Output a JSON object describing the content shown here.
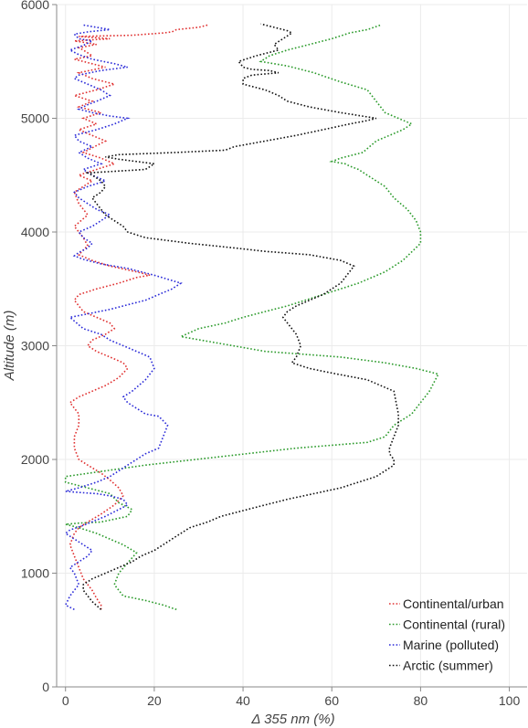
{
  "chart_data": {
    "type": "line",
    "xlabel": "Δ 355 nm (%)",
    "ylabel": "Altitude (m)",
    "xlim": [
      -2,
      104
    ],
    "ylim": [
      0,
      6000
    ],
    "xticks": [
      0,
      20,
      40,
      60,
      80,
      100
    ],
    "yticks": [
      0,
      1000,
      2000,
      3000,
      4000,
      5000,
      6000
    ],
    "grid": true,
    "legend_position": "bottom-right",
    "series": [
      {
        "name": "Continental/urban",
        "color": "#e03030",
        "x": [
          8,
          8,
          7,
          6,
          4,
          3,
          2,
          1,
          2,
          3,
          5,
          8,
          11,
          13,
          12,
          10,
          8,
          5,
          3,
          2,
          2,
          3,
          3,
          1,
          3,
          6,
          9,
          12,
          14,
          13,
          10,
          7,
          5,
          6,
          9,
          11,
          10,
          7,
          4,
          2,
          3,
          7,
          12,
          16,
          19,
          16,
          10,
          6,
          3,
          5,
          4,
          2,
          5,
          3,
          2,
          6,
          3,
          7,
          11,
          8,
          4,
          9,
          3,
          7,
          4,
          8,
          3,
          6,
          2,
          7,
          11,
          6,
          3,
          9,
          4,
          2,
          6,
          4,
          3,
          7,
          2,
          10,
          3,
          15,
          22,
          24,
          25,
          30,
          32
        ],
        "y": [
          680,
          720,
          780,
          850,
          950,
          1050,
          1150,
          1250,
          1350,
          1400,
          1450,
          1520,
          1600,
          1680,
          1750,
          1820,
          1880,
          1950,
          2000,
          2100,
          2200,
          2300,
          2400,
          2500,
          2550,
          2600,
          2650,
          2720,
          2800,
          2850,
          2900,
          2950,
          3000,
          3050,
          3100,
          3150,
          3200,
          3250,
          3300,
          3400,
          3450,
          3500,
          3550,
          3600,
          3620,
          3650,
          3700,
          3750,
          3800,
          3880,
          3950,
          4050,
          4150,
          4250,
          4350,
          4450,
          4500,
          4550,
          4600,
          4650,
          4700,
          4800,
          4900,
          4950,
          5000,
          5050,
          5100,
          5150,
          5200,
          5250,
          5300,
          5350,
          5400,
          5450,
          5500,
          5520,
          5550,
          5600,
          5620,
          5650,
          5680,
          5700,
          5720,
          5730,
          5750,
          5760,
          5780,
          5800,
          5820
        ]
      },
      {
        "name": "Continental (rural)",
        "color": "#2a9a2a",
        "x": [
          25,
          22,
          18,
          13,
          12,
          11,
          12,
          16,
          13,
          10,
          7,
          3,
          1,
          0,
          3,
          8,
          14,
          15,
          12,
          10,
          0,
          0,
          18,
          52,
          68,
          72,
          74,
          78,
          82,
          84,
          79,
          72,
          62,
          45,
          26,
          30,
          36,
          40,
          45,
          50,
          58,
          66,
          72,
          76,
          80,
          80,
          79,
          77,
          74,
          72,
          70,
          68,
          66,
          64,
          63,
          60,
          62,
          67,
          70,
          73,
          76,
          78,
          75,
          72,
          70,
          68,
          62,
          56,
          50,
          44,
          46,
          50,
          55,
          60,
          64,
          68,
          71
        ],
        "y": [
          680,
          720,
          760,
          800,
          850,
          900,
          1000,
          1180,
          1250,
          1300,
          1350,
          1400,
          1420,
          1430,
          1440,
          1450,
          1500,
          1560,
          1620,
          1700,
          1800,
          1850,
          1950,
          2100,
          2150,
          2200,
          2300,
          2400,
          2600,
          2750,
          2800,
          2850,
          2900,
          2950,
          3080,
          3150,
          3200,
          3250,
          3300,
          3350,
          3450,
          3550,
          3650,
          3750,
          3900,
          4000,
          4100,
          4200,
          4300,
          4400,
          4450,
          4500,
          4550,
          4580,
          4600,
          4620,
          4650,
          4700,
          4800,
          4850,
          4900,
          4950,
          5000,
          5050,
          5150,
          5250,
          5320,
          5400,
          5460,
          5500,
          5550,
          5600,
          5650,
          5700,
          5750,
          5780,
          5820
        ]
      },
      {
        "name": "Marine (polluted)",
        "color": "#2a2ad8",
        "x": [
          2,
          0,
          1,
          3,
          2,
          1,
          3,
          5,
          6,
          4,
          2,
          0,
          1,
          4,
          9,
          12,
          14,
          13,
          10,
          7,
          3,
          0,
          3,
          7,
          10,
          12,
          14,
          16,
          18,
          21,
          22,
          23,
          21,
          18,
          16,
          14,
          13,
          15,
          18,
          20,
          19,
          16,
          13,
          10,
          8,
          4,
          1,
          5,
          10,
          14,
          18,
          21,
          24,
          26,
          20,
          14,
          8,
          4,
          2,
          3,
          5,
          6,
          4,
          3,
          6,
          8,
          10,
          7,
          5,
          3,
          2,
          5,
          9,
          6,
          4,
          8,
          5,
          3,
          6,
          3,
          2,
          7,
          11,
          14,
          10,
          6,
          3,
          5,
          7,
          10,
          8,
          5,
          2,
          3,
          8,
          14,
          11,
          6,
          3,
          1,
          4,
          6,
          3,
          2,
          5,
          10,
          4
        ],
        "y": [
          680,
          720,
          800,
          900,
          1000,
          1050,
          1100,
          1150,
          1200,
          1250,
          1300,
          1350,
          1380,
          1420,
          1500,
          1560,
          1600,
          1650,
          1680,
          1700,
          1710,
          1720,
          1750,
          1800,
          1850,
          1900,
          1950,
          2000,
          2050,
          2100,
          2200,
          2300,
          2380,
          2400,
          2450,
          2500,
          2550,
          2600,
          2700,
          2800,
          2900,
          2950,
          3000,
          3050,
          3100,
          3150,
          3250,
          3280,
          3320,
          3360,
          3400,
          3450,
          3500,
          3550,
          3620,
          3680,
          3720,
          3760,
          3790,
          3820,
          3860,
          3900,
          3950,
          4000,
          4050,
          4100,
          4150,
          4200,
          4250,
          4300,
          4350,
          4400,
          4450,
          4500,
          4550,
          4600,
          4650,
          4700,
          4750,
          4800,
          4850,
          4900,
          4950,
          5000,
          5020,
          5050,
          5080,
          5120,
          5150,
          5200,
          5250,
          5300,
          5350,
          5380,
          5420,
          5450,
          5480,
          5520,
          5560,
          5600,
          5640,
          5680,
          5700,
          5740,
          5760,
          5780,
          5820
        ]
      },
      {
        "name": "Arctic (summer)",
        "color": "#111111",
        "x": [
          8,
          6,
          5,
          4,
          4,
          6,
          9,
          12,
          15,
          17,
          20,
          22,
          24,
          26,
          28,
          32,
          35,
          40,
          45,
          50,
          56,
          62,
          66,
          70,
          72,
          74,
          74,
          73,
          73,
          74,
          75,
          75,
          74,
          68,
          60,
          55,
          51,
          52,
          53,
          52,
          50,
          49,
          50,
          52,
          55,
          58,
          60,
          62,
          65,
          62,
          55,
          45,
          38,
          28,
          18,
          14,
          13,
          11,
          9,
          8,
          7,
          6,
          8,
          9,
          8,
          6,
          5,
          18,
          20,
          16,
          12,
          9,
          12,
          25,
          36,
          38,
          45,
          52,
          58,
          64,
          68,
          70,
          62,
          55,
          50,
          48,
          45,
          40,
          40,
          42,
          48,
          46,
          42,
          40,
          39,
          43,
          48,
          47,
          49,
          51,
          50,
          47,
          45,
          44
        ],
        "y": [
          680,
          750,
          800,
          850,
          900,
          950,
          1000,
          1050,
          1100,
          1150,
          1200,
          1250,
          1300,
          1350,
          1400,
          1450,
          1500,
          1550,
          1600,
          1650,
          1700,
          1750,
          1800,
          1850,
          1900,
          1950,
          2000,
          2050,
          2100,
          2200,
          2300,
          2400,
          2600,
          2700,
          2760,
          2800,
          2850,
          2900,
          3000,
          3100,
          3200,
          3250,
          3300,
          3350,
          3400,
          3450,
          3500,
          3550,
          3700,
          3750,
          3800,
          3830,
          3860,
          3900,
          3950,
          4000,
          4050,
          4100,
          4150,
          4200,
          4250,
          4300,
          4350,
          4400,
          4450,
          4500,
          4520,
          4550,
          4600,
          4620,
          4640,
          4660,
          4680,
          4700,
          4720,
          4750,
          4800,
          4850,
          4900,
          4950,
          4980,
          5000,
          5050,
          5100,
          5150,
          5200,
          5250,
          5300,
          5350,
          5380,
          5400,
          5420,
          5430,
          5450,
          5500,
          5550,
          5600,
          5650,
          5700,
          5750,
          5770,
          5800,
          5820,
          5830
        ]
      }
    ]
  }
}
